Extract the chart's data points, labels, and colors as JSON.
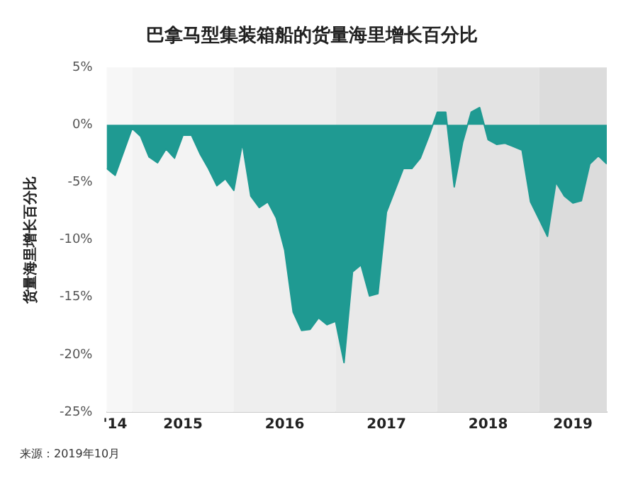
{
  "chart_data": {
    "type": "area",
    "title": "巴拿马型集装箱船的货量海里增长百分比",
    "ylabel": "货量海里增长百分比",
    "annotations": [
      "来源：2019年10月"
    ],
    "x": [
      "2014-10",
      "2014-11",
      "2015-01",
      "2015-02",
      "2015-03",
      "2015-04",
      "2015-05",
      "2015-06",
      "2015-07",
      "2015-08",
      "2015-09",
      "2015-10",
      "2015-11",
      "2015-12",
      "2016-01",
      "2016-02",
      "2016-03",
      "2016-04",
      "2016-05",
      "2016-06",
      "2016-07",
      "2016-08",
      "2016-09",
      "2016-10",
      "2016-11",
      "2016-12",
      "2017-01",
      "2017-02",
      "2017-03",
      "2017-04",
      "2017-05",
      "2017-06",
      "2017-07",
      "2017-09",
      "2017-10",
      "2017-11",
      "2017-12",
      "2018-01",
      "2018-02",
      "2018-03",
      "2018-04",
      "2018-05",
      "2018-06",
      "2018-07",
      "2018-08",
      "2018-09",
      "2018-10",
      "2018-11",
      "2018-12",
      "2019-02",
      "2019-03",
      "2019-04",
      "2019-05",
      "2019-06",
      "2019-07",
      "2019-08",
      "2019-09"
    ],
    "series": [
      {
        "color": "#1f9a92",
        "values": [
          -3.8,
          -4.4,
          -0.3,
          -1.0,
          -2.8,
          -3.3,
          -2.1,
          -2.9,
          -0.9,
          -0.9,
          -2.5,
          -3.8,
          -5.3,
          -4.7,
          -5.7,
          -1.6,
          -6.2,
          -7.2,
          -6.7,
          -8.1,
          -10.9,
          -16.3,
          -17.9,
          -17.8,
          -16.8,
          -17.4,
          -17.1,
          -20.7,
          -12.8,
          -12.2,
          -14.9,
          -14.7,
          -7.6,
          -3.8,
          -3.8,
          -2.9,
          -1.0,
          1.1,
          1.1,
          -5.4,
          -1.5,
          1.1,
          1.5,
          -1.3,
          -1.7,
          -1.6,
          -1.9,
          -2.2,
          -6.7,
          -9.7,
          -5.0,
          -6.2,
          -6.8,
          -6.6,
          -3.4,
          -2.7,
          -3.4
        ]
      }
    ],
    "xlim": [
      "2014-10",
      "2019-09"
    ],
    "xticks": [
      {
        "value": "2014-11",
        "label": "'14"
      },
      {
        "value": "2015-07",
        "label": "2015"
      },
      {
        "value": "2016-07",
        "label": "2016"
      },
      {
        "value": "2017-07",
        "label": "2017"
      },
      {
        "value": "2018-07",
        "label": "2018"
      },
      {
        "value": "2019-05",
        "label": "2019"
      }
    ],
    "ylim": [
      -25,
      5
    ],
    "yticks": [
      {
        "value": 5,
        "label": "5%"
      },
      {
        "value": 0,
        "label": "0%"
      },
      {
        "value": -5,
        "label": "-5%"
      },
      {
        "value": -10,
        "label": "-10%"
      },
      {
        "value": -15,
        "label": "-15%"
      },
      {
        "value": -20,
        "label": "-20%"
      },
      {
        "value": -25,
        "label": "-25%"
      }
    ],
    "bands": [
      {
        "axis": "x",
        "from": "2014-10",
        "to": "2015-01",
        "color": "#f7f7f7"
      },
      {
        "axis": "x",
        "from": "2015-01",
        "to": "2016-01",
        "color": "#f3f3f3"
      },
      {
        "axis": "x",
        "from": "2016-01",
        "to": "2017-01",
        "color": "#eeeeee"
      },
      {
        "axis": "x",
        "from": "2017-01",
        "to": "2018-01",
        "color": "#e9e9e9"
      },
      {
        "axis": "x",
        "from": "2018-01",
        "to": "2019-01",
        "color": "#e3e3e3"
      },
      {
        "axis": "x",
        "from": "2019-01",
        "to": "2019-09",
        "color": "#dcdcdc"
      }
    ],
    "grid": false,
    "legend": false,
    "marker": "none",
    "line_style": "solid"
  }
}
